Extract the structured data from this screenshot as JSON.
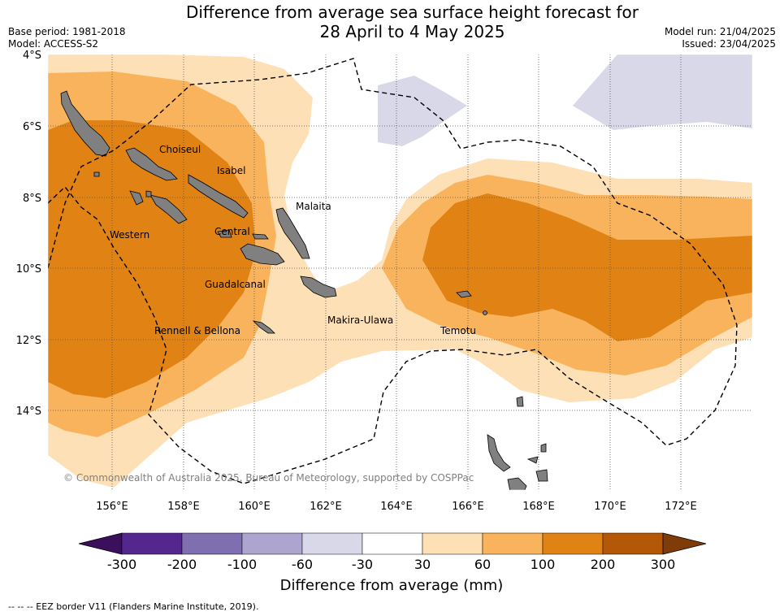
{
  "header": {
    "title_line1": "Difference from average sea surface height forecast for",
    "title_line2": "28 April to 4 May 2025",
    "base_period": "Base period: 1981-2018",
    "model": "Model: ACCESS-S2",
    "model_run": "Model run: 21/04/2025",
    "issued": "Issued: 23/04/2025"
  },
  "map": {
    "lat_labels": [
      "4°S",
      "6°S",
      "8°S",
      "10°S",
      "12°S",
      "14°S"
    ],
    "lon_labels": [
      "156°E",
      "158°E",
      "160°E",
      "162°E",
      "164°E",
      "166°E",
      "168°E",
      "170°E",
      "172°E"
    ],
    "regions": [
      "Choiseul",
      "Isabel",
      "Malaita",
      "Western",
      "Central",
      "Guadalcanal",
      "Rennell & Bellona",
      "Makira-Ulawa",
      "Temotu"
    ],
    "copyright": "© Commonwealth of Australia 2025, Bureau of Meteorology, supported by COSPPac"
  },
  "colorbar": {
    "title": "Difference from average (mm)",
    "ticks": [
      "-300",
      "-200",
      "-100",
      "-60",
      "-30",
      "30",
      "60",
      "100",
      "200",
      "300"
    ],
    "colors": [
      "#3b0f5c",
      "#54278f",
      "#7f6fb0",
      "#ada5d0",
      "#d8d8e8",
      "#ffffff",
      "#fee0b6",
      "#f9b35d",
      "#e08214",
      "#b35806",
      "#7f3b08"
    ]
  },
  "legend": {
    "eez": "--  --  -- EEZ border V11 (Flanders Marine Institute, 2019)."
  }
}
